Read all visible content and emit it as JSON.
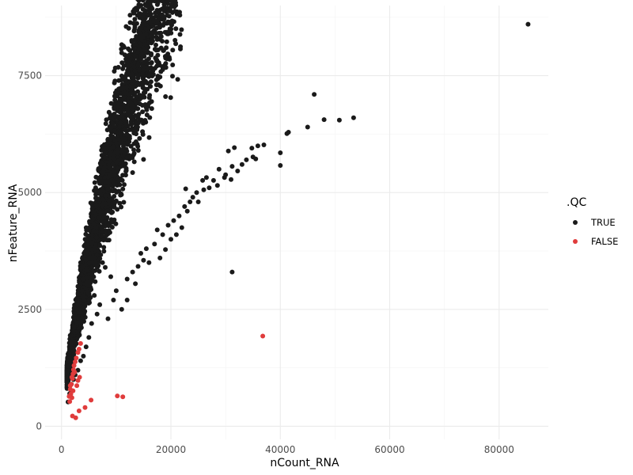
{
  "chart_data": {
    "type": "scatter",
    "title": "",
    "xlabel": "nCount_RNA",
    "ylabel": "nFeature_RNA",
    "xlim": [
      -3000,
      89000
    ],
    "ylim": [
      -280,
      9000
    ],
    "x_ticks": [
      0,
      20000,
      40000,
      60000,
      80000
    ],
    "y_ticks": [
      0,
      2500,
      5000,
      7500
    ],
    "grid": true,
    "legend": {
      "title": ".QC",
      "placement": "right",
      "entries": [
        {
          "label": "TRUE",
          "color": "#1a1a1a"
        },
        {
          "label": "FALSE",
          "color": "#e03c3c"
        }
      ]
    },
    "series": [
      {
        "name": "TRUE",
        "color": "#1a1a1a",
        "cloud": {
          "x_range": [
            1000,
            22000
          ],
          "count": 3500,
          "relation": "y ≈ 6*x^0.75 approximately, spread ±10%"
        },
        "points": [
          [
            85300,
            8600
          ],
          [
            46200,
            7100
          ],
          [
            53400,
            6600
          ],
          [
            48000,
            6560
          ],
          [
            50800,
            6550
          ],
          [
            45000,
            6400
          ],
          [
            41500,
            6290
          ],
          [
            41200,
            6260
          ],
          [
            37000,
            6020
          ],
          [
            35900,
            6000
          ],
          [
            34800,
            5950
          ],
          [
            31600,
            5960
          ],
          [
            30500,
            5890
          ],
          [
            40000,
            5850
          ],
          [
            35000,
            5760
          ],
          [
            35500,
            5720
          ],
          [
            33800,
            5700
          ],
          [
            33000,
            5600
          ],
          [
            40000,
            5580
          ],
          [
            31200,
            5560
          ],
          [
            32200,
            5460
          ],
          [
            28800,
            5500
          ],
          [
            30000,
            5380
          ],
          [
            29800,
            5320
          ],
          [
            31000,
            5280
          ],
          [
            27800,
            5260
          ],
          [
            26500,
            5320
          ],
          [
            25800,
            5260
          ],
          [
            28500,
            5150
          ],
          [
            26000,
            5060
          ],
          [
            24700,
            5000
          ],
          [
            22700,
            5080
          ],
          [
            24000,
            4900
          ],
          [
            23500,
            4800
          ],
          [
            22500,
            4700
          ],
          [
            21500,
            4500
          ],
          [
            20500,
            4400
          ],
          [
            19500,
            4300
          ],
          [
            22000,
            4250
          ],
          [
            18500,
            4100
          ],
          [
            17000,
            3900
          ],
          [
            19000,
            3780
          ],
          [
            15000,
            3550
          ],
          [
            14000,
            3420
          ],
          [
            13000,
            3300
          ],
          [
            12000,
            3150
          ],
          [
            31200,
            3300
          ],
          [
            7500,
            3500
          ],
          [
            8000,
            3400
          ],
          [
            9000,
            3200
          ],
          [
            10000,
            2900
          ],
          [
            6000,
            2800
          ],
          [
            7000,
            2600
          ],
          [
            12000,
            2700
          ],
          [
            11000,
            2500
          ],
          [
            13500,
            3050
          ],
          [
            16000,
            3500
          ],
          [
            18000,
            3600
          ],
          [
            20000,
            4000
          ],
          [
            21000,
            4100
          ],
          [
            23000,
            4600
          ],
          [
            25000,
            4800
          ],
          [
            27000,
            5100
          ],
          [
            17500,
            4200
          ],
          [
            15500,
            3800
          ],
          [
            14500,
            3700
          ],
          [
            9500,
            2700
          ],
          [
            8500,
            2300
          ],
          [
            5500,
            2200
          ],
          [
            4500,
            1700
          ],
          [
            3500,
            1400
          ],
          [
            2500,
            1100
          ],
          [
            1500,
            700
          ],
          [
            1200,
            520
          ],
          [
            1800,
            900
          ],
          [
            2200,
            1000
          ],
          [
            3000,
            1200
          ],
          [
            4000,
            1500
          ],
          [
            5000,
            1900
          ],
          [
            6500,
            2400
          ]
        ]
      },
      {
        "name": "FALSE",
        "color": "#e03c3c",
        "points": [
          [
            36800,
            1930
          ],
          [
            10200,
            650
          ],
          [
            11200,
            630
          ],
          [
            5400,
            560
          ],
          [
            4300,
            400
          ],
          [
            3200,
            330
          ],
          [
            2600,
            180
          ],
          [
            2000,
            220
          ],
          [
            1500,
            530
          ],
          [
            1900,
            610
          ],
          [
            1700,
            690
          ],
          [
            1600,
            790
          ],
          [
            1800,
            900
          ],
          [
            2000,
            1020
          ],
          [
            2100,
            1120
          ],
          [
            2200,
            1210
          ],
          [
            2300,
            1300
          ],
          [
            2500,
            1380
          ],
          [
            2700,
            1460
          ],
          [
            3000,
            1580
          ],
          [
            3200,
            1650
          ],
          [
            3500,
            1770
          ],
          [
            2400,
            1160
          ],
          [
            1900,
            1050
          ],
          [
            1600,
            870
          ],
          [
            1400,
            640
          ],
          [
            2100,
            760
          ],
          [
            3000,
            980
          ],
          [
            3300,
            1050
          ],
          [
            2800,
            870
          ]
        ]
      }
    ]
  }
}
